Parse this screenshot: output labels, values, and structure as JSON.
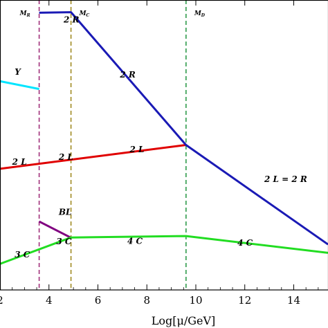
{
  "chart_data": {
    "type": "line",
    "title": "",
    "xlabel": "Log[μ/GeV]",
    "ylabel": "",
    "xlim": [
      2,
      15.4
    ],
    "ylim": [
      0,
      1
    ],
    "x_ticks": [
      2,
      4,
      6,
      8,
      10,
      12,
      14
    ],
    "x_tick_labels": [
      "2",
      "4",
      "6",
      "8",
      "10",
      "12",
      "14"
    ],
    "grid": false,
    "series": [
      {
        "color": "#00e5ff",
        "points": [
          [
            2.0,
            0.72
          ],
          [
            3.6,
            0.693
          ]
        ]
      },
      {
        "color": "#e00000",
        "points": [
          [
            2.0,
            0.418
          ],
          [
            9.6,
            0.5
          ]
        ]
      },
      {
        "color": "#1a1ab5",
        "points": [
          [
            3.6,
            0.956
          ],
          [
            4.9,
            0.958
          ],
          [
            9.6,
            0.5
          ],
          [
            15.4,
            0.157
          ]
        ]
      },
      {
        "color": "#800080",
        "points": [
          [
            3.6,
            0.236
          ],
          [
            4.9,
            0.18
          ]
        ]
      },
      {
        "color": "#22dd22",
        "points": [
          [
            2.0,
            0.09
          ],
          [
            4.9,
            0.181
          ],
          [
            9.6,
            0.186
          ],
          [
            15.4,
            0.128
          ]
        ]
      }
    ],
    "vlines": [
      {
        "x": 3.6,
        "color": "#a0307a",
        "label": "M",
        "sub": "R"
      },
      {
        "x": 4.9,
        "color": "#a08a20",
        "label": "M",
        "sub": "C"
      },
      {
        "x": 9.6,
        "color": "#2e9a4a",
        "label": "M",
        "sub": "D"
      }
    ],
    "annotations": [
      {
        "text": "2 R",
        "x": 4.6,
        "y": 0.922
      },
      {
        "text": "2 R",
        "x": 6.9,
        "y": 0.733
      },
      {
        "text": "Y",
        "x": 2.6,
        "y": 0.742
      },
      {
        "text": "2 L",
        "x": 2.5,
        "y": 0.432
      },
      {
        "text": "2 L",
        "x": 4.4,
        "y": 0.449
      },
      {
        "text": "2 L",
        "x": 7.3,
        "y": 0.475
      },
      {
        "text": "2 L = 2 R",
        "x": 12.8,
        "y": 0.372
      },
      {
        "text": "BL",
        "x": 4.4,
        "y": 0.259
      },
      {
        "text": "3 C",
        "x": 4.3,
        "y": 0.157
      },
      {
        "text": "4 C",
        "x": 7.2,
        "y": 0.159
      },
      {
        "text": "4 C",
        "x": 11.7,
        "y": 0.153
      },
      {
        "text": "3 C",
        "x": 2.6,
        "y": 0.112
      }
    ]
  }
}
